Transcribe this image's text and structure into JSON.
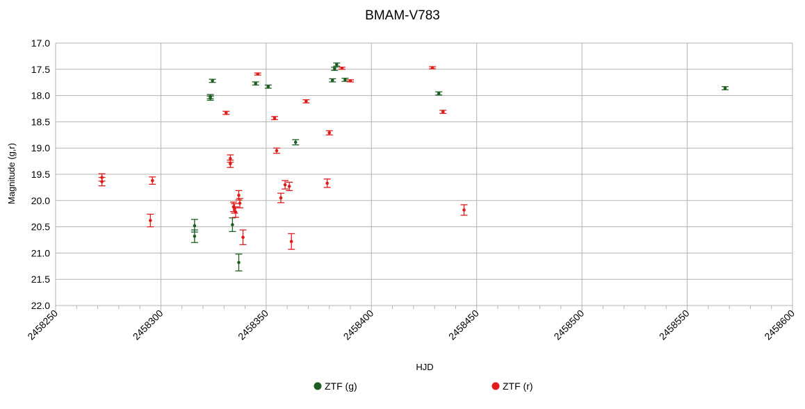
{
  "chart_data": {
    "type": "scatter",
    "title": "BMAM-V783",
    "xlabel": "HJD",
    "ylabel": "Magnitude (g,r)",
    "xlim": [
      2458250,
      2458600
    ],
    "ylim": [
      17.0,
      22.0
    ],
    "y_inverted": true,
    "x_ticks": [
      "2458250",
      "2458300",
      "2458350",
      "2458400",
      "2458450",
      "2458500",
      "2458550",
      "2458600"
    ],
    "y_ticks": [
      "17.0",
      "17.5",
      "18.0",
      "18.5",
      "19.0",
      "19.5",
      "20.0",
      "20.5",
      "21.0",
      "21.5",
      "22.0"
    ],
    "grid": true,
    "legend_position": "bottom",
    "series": [
      {
        "name": "ZTF (g)",
        "color": "#1b5e20",
        "points": [
          {
            "x": 2458316,
            "y": 20.48,
            "err": 0.12
          },
          {
            "x": 2458316,
            "y": 20.68,
            "err": 0.12
          },
          {
            "x": 2458323.5,
            "y": 18.02,
            "err": 0.04
          },
          {
            "x": 2458323.5,
            "y": 18.05,
            "err": 0.04
          },
          {
            "x": 2458324.5,
            "y": 17.72,
            "err": 0.03
          },
          {
            "x": 2458334,
            "y": 20.46,
            "err": 0.13
          },
          {
            "x": 2458337,
            "y": 21.18,
            "err": 0.16
          },
          {
            "x": 2458345,
            "y": 17.77,
            "err": 0.03
          },
          {
            "x": 2458351,
            "y": 17.83,
            "err": 0.03
          },
          {
            "x": 2458364,
            "y": 18.89,
            "err": 0.05
          },
          {
            "x": 2458381.5,
            "y": 17.71,
            "err": 0.03
          },
          {
            "x": 2458382.5,
            "y": 17.49,
            "err": 0.03
          },
          {
            "x": 2458383.5,
            "y": 17.41,
            "err": 0.03
          },
          {
            "x": 2458387.5,
            "y": 17.7,
            "err": 0.03
          },
          {
            "x": 2458432,
            "y": 17.96,
            "err": 0.03
          },
          {
            "x": 2458568,
            "y": 17.86,
            "err": 0.03
          }
        ]
      },
      {
        "name": "ZTF (r)",
        "color": "#e01b1b",
        "points": [
          {
            "x": 2458272,
            "y": 19.56,
            "err": 0.07
          },
          {
            "x": 2458272,
            "y": 19.64,
            "err": 0.08
          },
          {
            "x": 2458295,
            "y": 20.38,
            "err": 0.12
          },
          {
            "x": 2458296,
            "y": 19.62,
            "err": 0.07
          },
          {
            "x": 2458331,
            "y": 18.33,
            "err": 0.03
          },
          {
            "x": 2458333,
            "y": 19.2,
            "err": 0.07
          },
          {
            "x": 2458333,
            "y": 19.3,
            "err": 0.07
          },
          {
            "x": 2458334.5,
            "y": 20.12,
            "err": 0.09
          },
          {
            "x": 2458335,
            "y": 20.15,
            "err": 0.09
          },
          {
            "x": 2458335.5,
            "y": 20.22,
            "err": 0.1
          },
          {
            "x": 2458337,
            "y": 19.9,
            "err": 0.09
          },
          {
            "x": 2458337.5,
            "y": 20.05,
            "err": 0.09
          },
          {
            "x": 2458339,
            "y": 20.7,
            "err": 0.14
          },
          {
            "x": 2458346,
            "y": 17.59,
            "err": 0.02
          },
          {
            "x": 2458354,
            "y": 18.43,
            "err": 0.03
          },
          {
            "x": 2458355,
            "y": 19.05,
            "err": 0.05
          },
          {
            "x": 2458357,
            "y": 19.95,
            "err": 0.09
          },
          {
            "x": 2458359,
            "y": 19.7,
            "err": 0.08
          },
          {
            "x": 2458361,
            "y": 19.73,
            "err": 0.08
          },
          {
            "x": 2458362,
            "y": 20.78,
            "err": 0.15
          },
          {
            "x": 2458369,
            "y": 18.11,
            "err": 0.03
          },
          {
            "x": 2458379,
            "y": 19.67,
            "err": 0.08
          },
          {
            "x": 2458380,
            "y": 18.71,
            "err": 0.04
          },
          {
            "x": 2458386,
            "y": 17.48,
            "err": 0.02
          },
          {
            "x": 2458390,
            "y": 17.72,
            "err": 0.02
          },
          {
            "x": 2458429,
            "y": 17.47,
            "err": 0.02
          },
          {
            "x": 2458434,
            "y": 18.31,
            "err": 0.03
          },
          {
            "x": 2458444,
            "y": 20.18,
            "err": 0.1
          }
        ]
      }
    ]
  }
}
